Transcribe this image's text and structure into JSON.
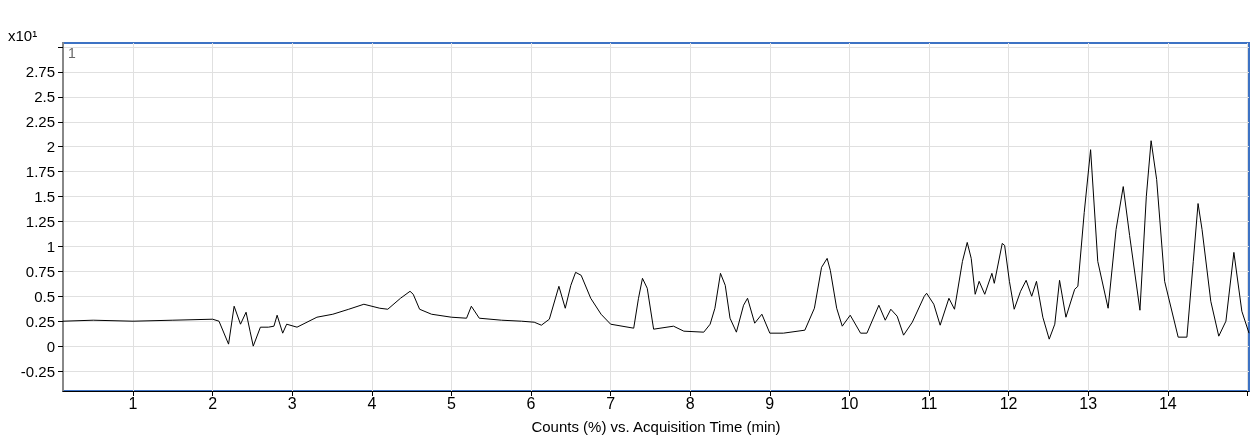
{
  "chart_data": {
    "type": "line",
    "xlabel": "Counts (%) vs. Acquisition Time (min)",
    "ylabel": "x10¹",
    "annotations": [
      "1"
    ],
    "x": [
      0.12,
      0.5,
      1.0,
      1.5,
      2.0,
      2.08,
      2.2,
      2.27,
      2.35,
      2.42,
      2.47,
      2.51,
      2.6,
      2.7,
      2.77,
      2.81,
      2.88,
      2.93,
      3.06,
      3.31,
      3.51,
      3.71,
      3.9,
      4.1,
      4.2,
      4.36,
      4.48,
      4.52,
      4.6,
      4.75,
      5.0,
      5.19,
      5.25,
      5.35,
      5.63,
      5.88,
      6.04,
      6.13,
      6.23,
      6.35,
      6.43,
      6.5,
      6.56,
      6.63,
      6.75,
      6.88,
      7.0,
      7.29,
      7.35,
      7.4,
      7.46,
      7.54,
      7.79,
      7.92,
      8.17,
      8.25,
      8.31,
      8.38,
      8.44,
      8.5,
      8.58,
      8.67,
      8.72,
      8.81,
      8.9,
      9.0,
      9.17,
      9.44,
      9.56,
      9.65,
      9.72,
      9.76,
      9.84,
      9.91,
      10.01,
      10.14,
      10.22,
      10.37,
      10.45,
      10.52,
      10.6,
      10.68,
      10.79,
      10.94,
      10.97,
      11.06,
      11.14,
      11.25,
      11.32,
      11.42,
      11.48,
      11.53,
      11.58,
      11.63,
      11.7,
      11.79,
      11.82,
      11.92,
      11.95,
      12.01,
      12.07,
      12.15,
      12.22,
      12.29,
      12.35,
      12.43,
      12.51,
      12.58,
      12.64,
      12.72,
      12.83,
      12.87,
      12.95,
      13.03,
      13.12,
      13.25,
      13.35,
      13.44,
      13.52,
      13.65,
      13.73,
      13.79,
      13.86,
      13.96,
      14.13,
      14.24,
      14.32,
      14.38,
      14.43,
      14.54,
      14.64,
      14.73,
      14.83,
      14.93,
      15.02
    ],
    "series": [
      {
        "color": "#000000",
        "values": [
          0.25,
          0.26,
          0.25,
          0.26,
          0.27,
          0.25,
          0.02,
          0.4,
          0.22,
          0.34,
          0.15,
          0.0,
          0.19,
          0.19,
          0.2,
          0.31,
          0.13,
          0.22,
          0.19,
          0.29,
          0.32,
          0.37,
          0.42,
          0.38,
          0.37,
          0.48,
          0.55,
          0.52,
          0.37,
          0.32,
          0.29,
          0.28,
          0.4,
          0.28,
          0.26,
          0.25,
          0.24,
          0.21,
          0.27,
          0.6,
          0.38,
          0.61,
          0.74,
          0.71,
          0.48,
          0.32,
          0.22,
          0.18,
          0.48,
          0.68,
          0.58,
          0.17,
          0.2,
          0.15,
          0.14,
          0.22,
          0.38,
          0.73,
          0.61,
          0.28,
          0.14,
          0.41,
          0.48,
          0.23,
          0.32,
          0.13,
          0.13,
          0.16,
          0.38,
          0.79,
          0.88,
          0.76,
          0.38,
          0.2,
          0.31,
          0.13,
          0.13,
          0.41,
          0.26,
          0.37,
          0.3,
          0.11,
          0.24,
          0.5,
          0.53,
          0.42,
          0.21,
          0.48,
          0.37,
          0.85,
          1.04,
          0.88,
          0.52,
          0.65,
          0.52,
          0.73,
          0.63,
          1.03,
          1.01,
          0.65,
          0.37,
          0.55,
          0.66,
          0.5,
          0.65,
          0.29,
          0.07,
          0.22,
          0.66,
          0.29,
          0.57,
          0.6,
          1.34,
          1.97,
          0.85,
          0.38,
          1.17,
          1.6,
          1.11,
          0.36,
          1.5,
          2.06,
          1.67,
          0.65,
          0.09,
          0.09,
          0.85,
          1.43,
          1.17,
          0.45,
          0.1,
          0.25,
          0.94,
          0.35,
          0.13
        ]
      }
    ],
    "xlim": [
      0.12,
      15.02
    ],
    "xticks": [
      1,
      2,
      3,
      4,
      5,
      6,
      7,
      8,
      9,
      10,
      11,
      12,
      13,
      14,
      {
        "value": 15,
        "label": null
      }
    ],
    "ylim": [
      -0.45,
      3.04
    ],
    "yticks": [
      -0.25,
      0,
      0.25,
      0.5,
      0.75,
      1,
      1.25,
      1.5,
      1.75,
      2,
      2.25,
      2.5,
      2.75,
      {
        "value": 3,
        "label": null
      }
    ],
    "grid": true,
    "marker": "none",
    "line_style": "solid"
  }
}
